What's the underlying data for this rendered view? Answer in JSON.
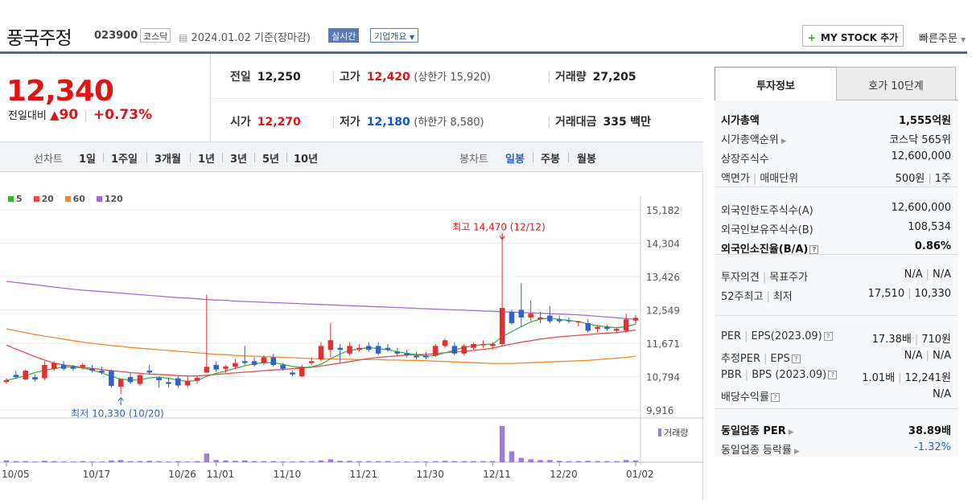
{
  "header": {
    "stock_name": "풍국주정",
    "stock_code": "023900",
    "market": "코스닥",
    "date_text": "2024.01.02  기준(장마감)",
    "realtime_label": "실시간",
    "company_info_label": "기업개요",
    "my_stock_label": "MY STOCK 추가",
    "quick_order_label": "빠른주문"
  },
  "price": {
    "current": "12,340",
    "change_label": "전일대비",
    "change_amount": "90",
    "change_percent": "+0.73%"
  },
  "stats": {
    "prev_label": "전일",
    "prev_value": "12,250",
    "high_label": "고가",
    "high_value": "12,420",
    "upper_limit": "(상한가 15,920)",
    "volume_label": "거래량",
    "volume_value": "27,205",
    "open_label": "시가",
    "open_value": "12,270",
    "low_label": "저가",
    "low_value": "12,180",
    "lower_limit": "(하한가 8,580)",
    "amount_label": "거래대금",
    "amount_value": "335",
    "amount_unit": "백만"
  },
  "period_bar": {
    "line_chart_label": "선차트",
    "line_periods": [
      "1일",
      "1주일",
      "3개월",
      "1년",
      "3년",
      "5년",
      "10년"
    ],
    "candle_chart_label": "봉차트",
    "candle_periods": [
      "일봉",
      "주봉",
      "월봉"
    ],
    "selected_candle": "일봉"
  },
  "chart_data": {
    "type": "candlestick",
    "legend": [
      {
        "name": "5",
        "color": "#3cb43c"
      },
      {
        "name": "20",
        "color": "#e84a4a"
      },
      {
        "name": "60",
        "color": "#f08a2c"
      },
      {
        "name": "120",
        "color": "#a66ad8"
      }
    ],
    "y_ticks": [
      15182,
      14304,
      13426,
      12549,
      11671,
      10794,
      9916
    ],
    "x_labels": [
      "10/05",
      "10/17",
      "10/26",
      "11/01",
      "11/10",
      "11/21",
      "11/30",
      "12/11",
      "12/20",
      "01/02"
    ],
    "high_annotation": "최고 14,470 (12/12)",
    "low_annotation": "최저 10,330 (10/20)",
    "volume_label": "거래량",
    "up_color": "#e03030",
    "down_color": "#2f63c7",
    "candles": [
      {
        "o": 10650,
        "h": 10760,
        "l": 10600,
        "c": 10700
      },
      {
        "o": 10840,
        "h": 10950,
        "l": 10750,
        "c": 10780
      },
      {
        "o": 10720,
        "h": 10980,
        "l": 10700,
        "c": 10950
      },
      {
        "o": 10780,
        "h": 10850,
        "l": 10660,
        "c": 10720
      },
      {
        "o": 10750,
        "h": 11200,
        "l": 10700,
        "c": 11100
      },
      {
        "o": 11000,
        "h": 11200,
        "l": 10950,
        "c": 11150
      },
      {
        "o": 11100,
        "h": 11200,
        "l": 10950,
        "c": 11000
      },
      {
        "o": 11050,
        "h": 11100,
        "l": 10950,
        "c": 11000
      },
      {
        "o": 11050,
        "h": 11150,
        "l": 10980,
        "c": 11100
      },
      {
        "o": 11000,
        "h": 11100,
        "l": 10900,
        "c": 10950
      },
      {
        "o": 10950,
        "h": 11050,
        "l": 10850,
        "c": 10900
      },
      {
        "o": 10950,
        "h": 10980,
        "l": 10500,
        "c": 10550
      },
      {
        "o": 10530,
        "h": 10700,
        "l": 10330,
        "c": 10730
      },
      {
        "o": 10780,
        "h": 10900,
        "l": 10600,
        "c": 10650
      },
      {
        "o": 10600,
        "h": 10850,
        "l": 10550,
        "c": 10830
      },
      {
        "o": 10950,
        "h": 11100,
        "l": 10850,
        "c": 10900
      },
      {
        "o": 10760,
        "h": 10800,
        "l": 10500,
        "c": 10700
      },
      {
        "o": 10650,
        "h": 10760,
        "l": 10500,
        "c": 10600
      },
      {
        "o": 10750,
        "h": 10800,
        "l": 10500,
        "c": 10560
      },
      {
        "o": 10560,
        "h": 10800,
        "l": 10500,
        "c": 10680
      },
      {
        "o": 10680,
        "h": 10800,
        "l": 10600,
        "c": 10760
      },
      {
        "o": 10900,
        "h": 12950,
        "l": 10880,
        "c": 11050
      },
      {
        "o": 11100,
        "h": 11200,
        "l": 10920,
        "c": 10980
      },
      {
        "o": 11000,
        "h": 11100,
        "l": 10900,
        "c": 11060
      },
      {
        "o": 11050,
        "h": 11250,
        "l": 10990,
        "c": 11150
      },
      {
        "o": 11200,
        "h": 11600,
        "l": 11100,
        "c": 11150
      },
      {
        "o": 11200,
        "h": 11300,
        "l": 11050,
        "c": 11100
      },
      {
        "o": 11150,
        "h": 11350,
        "l": 11100,
        "c": 11300
      },
      {
        "o": 11300,
        "h": 11400,
        "l": 11050,
        "c": 11100
      },
      {
        "o": 11100,
        "h": 11150,
        "l": 10950,
        "c": 11000
      },
      {
        "o": 10900,
        "h": 10950,
        "l": 10800,
        "c": 10850
      },
      {
        "o": 10800,
        "h": 11100,
        "l": 10780,
        "c": 11050
      },
      {
        "o": 11150,
        "h": 11300,
        "l": 11100,
        "c": 11200
      },
      {
        "o": 11250,
        "h": 11700,
        "l": 11200,
        "c": 11600
      },
      {
        "o": 11500,
        "h": 12200,
        "l": 11300,
        "c": 11750
      },
      {
        "o": 11550,
        "h": 11650,
        "l": 11150,
        "c": 11500
      },
      {
        "o": 11400,
        "h": 11700,
        "l": 11350,
        "c": 11600
      },
      {
        "o": 11500,
        "h": 11650,
        "l": 11450,
        "c": 11550
      },
      {
        "o": 11600,
        "h": 11700,
        "l": 11450,
        "c": 11500
      },
      {
        "o": 11600,
        "h": 11700,
        "l": 11350,
        "c": 11400
      },
      {
        "o": 11550,
        "h": 11650,
        "l": 11450,
        "c": 11500
      },
      {
        "o": 11450,
        "h": 11550,
        "l": 11350,
        "c": 11400
      },
      {
        "o": 11400,
        "h": 11500,
        "l": 11300,
        "c": 11350
      },
      {
        "o": 11350,
        "h": 11450,
        "l": 11250,
        "c": 11300
      },
      {
        "o": 11350,
        "h": 11450,
        "l": 11250,
        "c": 11300
      },
      {
        "o": 11350,
        "h": 11650,
        "l": 11300,
        "c": 11600
      },
      {
        "o": 11600,
        "h": 11800,
        "l": 11550,
        "c": 11750
      },
      {
        "o": 11600,
        "h": 11700,
        "l": 11350,
        "c": 11400
      },
      {
        "o": 11400,
        "h": 11650,
        "l": 11350,
        "c": 11600
      },
      {
        "o": 11550,
        "h": 11700,
        "l": 11500,
        "c": 11650
      },
      {
        "o": 11650,
        "h": 11750,
        "l": 11550,
        "c": 11650
      },
      {
        "o": 11600,
        "h": 11700,
        "l": 11500,
        "c": 11650
      },
      {
        "o": 11650,
        "h": 14470,
        "l": 11600,
        "c": 12600
      },
      {
        "o": 12500,
        "h": 12550,
        "l": 12150,
        "c": 12200
      },
      {
        "o": 12550,
        "h": 13250,
        "l": 12100,
        "c": 12350
      },
      {
        "o": 12350,
        "h": 12800,
        "l": 12250,
        "c": 12450
      },
      {
        "o": 12300,
        "h": 12500,
        "l": 12200,
        "c": 12350
      },
      {
        "o": 12400,
        "h": 12650,
        "l": 12200,
        "c": 12250
      },
      {
        "o": 12300,
        "h": 12400,
        "l": 12200,
        "c": 12250
      },
      {
        "o": 12280,
        "h": 12350,
        "l": 12200,
        "c": 12250
      },
      {
        "o": 12220,
        "h": 12260,
        "l": 12120,
        "c": 12250
      },
      {
        "o": 12200,
        "h": 12300,
        "l": 11950,
        "c": 12000
      },
      {
        "o": 12050,
        "h": 12150,
        "l": 11950,
        "c": 12100
      },
      {
        "o": 12100,
        "h": 12150,
        "l": 12000,
        "c": 12050
      },
      {
        "o": 12000,
        "h": 12100,
        "l": 11950,
        "c": 12050
      },
      {
        "o": 12000,
        "h": 12450,
        "l": 11950,
        "c": 12300
      },
      {
        "o": 12270,
        "h": 12420,
        "l": 12180,
        "c": 12340
      }
    ],
    "volumes": [
      0.05,
      0.03,
      0.03,
      0.02,
      0.04,
      0.03,
      0.02,
      0.02,
      0.03,
      0.02,
      0.02,
      0.05,
      0.06,
      0.03,
      0.03,
      0.04,
      0.03,
      0.02,
      0.03,
      0.02,
      0.03,
      0.24,
      0.06,
      0.05,
      0.04,
      0.05,
      0.03,
      0.03,
      0.03,
      0.02,
      0.02,
      0.03,
      0.03,
      0.05,
      0.08,
      0.04,
      0.04,
      0.03,
      0.03,
      0.03,
      0.03,
      0.02,
      0.02,
      0.02,
      0.02,
      0.03,
      0.04,
      0.03,
      0.03,
      0.03,
      0.03,
      0.03,
      1.0,
      0.3,
      0.12,
      0.08,
      0.06,
      0.06,
      0.04,
      0.03,
      0.03,
      0.04,
      0.03,
      0.03,
      0.03,
      0.06,
      0.05
    ],
    "ma": {
      "5": [
        10700,
        10750,
        10820,
        10900,
        10960,
        11000,
        11050,
        11050,
        11020,
        10970,
        10890,
        10800,
        10730,
        10700,
        10710,
        10760,
        10780,
        10750,
        10700,
        10670,
        10690,
        10800,
        10880,
        10940,
        11010,
        11080,
        11130,
        11160,
        11160,
        11120,
        11060,
        11030,
        11050,
        11120,
        11260,
        11390,
        11480,
        11520,
        11560,
        11530,
        11500,
        11450,
        11410,
        11370,
        11330,
        11350,
        11420,
        11490,
        11560,
        11600,
        11640,
        11650,
        11840,
        11980,
        12110,
        12230,
        12310,
        12330,
        12300,
        12270,
        12240,
        12180,
        12130,
        12100,
        12080,
        12110,
        12170
      ],
      "20": [
        11620,
        11520,
        11420,
        11320,
        11230,
        11150,
        11100,
        11070,
        11040,
        11010,
        10980,
        10950,
        10930,
        10900,
        10880,
        10860,
        10850,
        10840,
        10820,
        10810,
        10810,
        10830,
        10850,
        10870,
        10890,
        10910,
        10930,
        10950,
        10970,
        10980,
        11000,
        11020,
        11040,
        11070,
        11110,
        11150,
        11190,
        11230,
        11270,
        11300,
        11320,
        11340,
        11360,
        11370,
        11380,
        11400,
        11420,
        11440,
        11460,
        11480,
        11510,
        11540,
        11600,
        11650,
        11700,
        11740,
        11780,
        11810,
        11840,
        11860,
        11880,
        11900,
        11920,
        11940,
        11950,
        11980,
        12020
      ],
      "60": [
        12050,
        12000,
        11950,
        11900,
        11860,
        11820,
        11780,
        11740,
        11700,
        11670,
        11640,
        11610,
        11590,
        11560,
        11540,
        11520,
        11500,
        11480,
        11460,
        11440,
        11420,
        11400,
        11380,
        11370,
        11350,
        11340,
        11330,
        11320,
        11310,
        11300,
        11290,
        11280,
        11270,
        11260,
        11260,
        11250,
        11250,
        11240,
        11240,
        11240,
        11230,
        11230,
        11220,
        11220,
        11210,
        11200,
        11190,
        11180,
        11170,
        11160,
        11150,
        11140,
        11140,
        11140,
        11150,
        11160,
        11170,
        11180,
        11190,
        11200,
        11210,
        11220,
        11240,
        11260,
        11280,
        11300,
        11330
      ],
      "120": [
        13300,
        13270,
        13240,
        13210,
        13180,
        13150,
        13120,
        13090,
        13070,
        13050,
        13030,
        13010,
        12990,
        12970,
        12950,
        12930,
        12910,
        12890,
        12870,
        12860,
        12840,
        12820,
        12810,
        12800,
        12780,
        12770,
        12760,
        12750,
        12740,
        12730,
        12720,
        12710,
        12700,
        12690,
        12680,
        12670,
        12660,
        12650,
        12640,
        12630,
        12620,
        12610,
        12600,
        12590,
        12580,
        12570,
        12560,
        12550,
        12540,
        12530,
        12520,
        12510,
        12500,
        12490,
        12480,
        12470,
        12460,
        12450,
        12440,
        12430,
        12420,
        12400,
        12380,
        12360,
        12340,
        12320,
        12300
      ]
    }
  },
  "invest_info": {
    "tabs": [
      "투자정보",
      "호가 10단계"
    ],
    "market_cap_label": "시가총액",
    "market_cap_value": "1,555억원",
    "market_cap_rank_label": "시가총액순위",
    "market_cap_rank_value": "코스닥 565위",
    "shares_label": "상장주식수",
    "shares_value": "12,600,000",
    "face_label": "액면가",
    "unit_label": "매매단위",
    "face_value": "500원",
    "unit_value": "1주",
    "foreign_limit_label": "외국인한도주식수(A)",
    "foreign_limit_value": "12,600,000",
    "foreign_hold_label": "외국인보유주식수(B)",
    "foreign_hold_value": "108,534",
    "foreign_rate_label": "외국인소진율(B/A)",
    "foreign_rate_value": "0.86%",
    "opinion_label": "투자의견",
    "target_label": "목표주가",
    "opinion_value": "N/A",
    "target_value": "N/A",
    "w52_label": "52주최고",
    "w52_low_label": "최저",
    "w52_high_value": "17,510",
    "w52_low_value": "10,330",
    "per_label": "PER",
    "eps_label": "EPS(2023.09)",
    "per_value": "17.38배",
    "eps_value": "710원",
    "est_per_label": "추정PER",
    "est_eps_label": "EPS",
    "est_per_value": "N/A",
    "est_eps_value": "N/A",
    "pbr_label": "PBR",
    "bps_label": "BPS (2023.09)",
    "pbr_value": "1.01배",
    "bps_value": "12,241원",
    "dividend_label": "배당수익률",
    "dividend_value": "N/A",
    "sector_per_label": "동일업종 PER",
    "sector_per_value": "38.89배",
    "sector_rate_label": "동일업종 등락률",
    "sector_rate_value": "-1.32%"
  }
}
